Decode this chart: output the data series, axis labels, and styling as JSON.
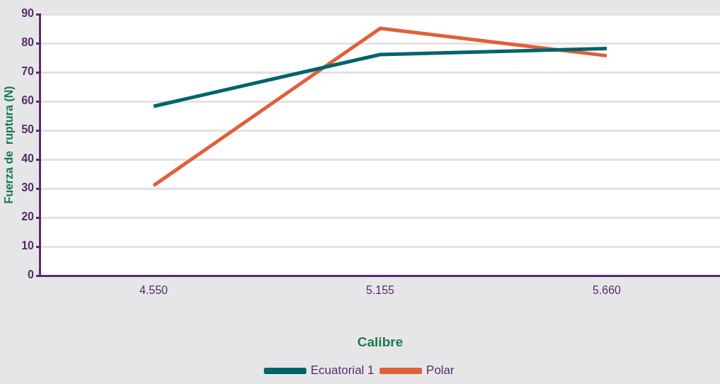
{
  "chart_data": {
    "type": "line",
    "xlabel": "Calibre",
    "ylabel": "Fuerza de  ruptura (N)",
    "categories": [
      "4.550",
      "5.155",
      "5.660"
    ],
    "series": [
      {
        "name": "Ecuatorial 1",
        "color": "#00646a",
        "values": [
          58.3,
          76.1,
          78.2
        ]
      },
      {
        "name": "Polar",
        "color": "#e0603a",
        "values": [
          31.0,
          85.1,
          75.7
        ]
      }
    ],
    "ylim": [
      0,
      90
    ],
    "yticks": [
      0,
      10,
      20,
      30,
      40,
      50,
      60,
      70,
      80,
      90
    ],
    "grid": "y",
    "legend": "bottom",
    "marker": "none",
    "line_style": "solid"
  }
}
